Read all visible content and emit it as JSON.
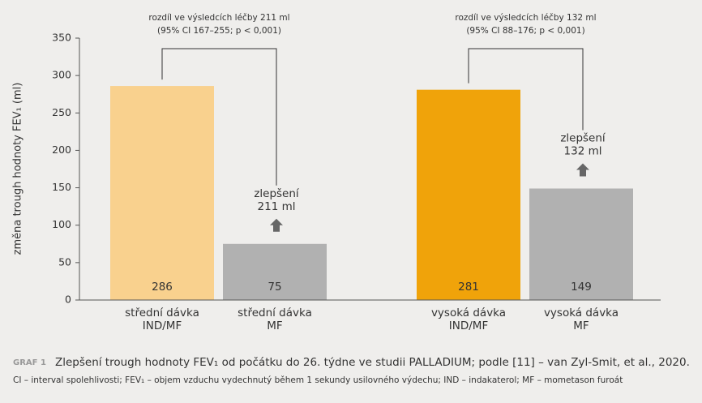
{
  "chart_data": {
    "type": "bar",
    "ylabel": "změna trough hodnoty FEV₁ (ml)",
    "categories": [
      [
        "střední dávka",
        "IND/MF"
      ],
      [
        "střední dávka",
        "MF"
      ],
      [
        "vysoká dávka",
        "IND/MF"
      ],
      [
        "vysoká dávka",
        "MF"
      ]
    ],
    "values": [
      286,
      75,
      281,
      149
    ],
    "colors": [
      "#f9d18e",
      "#b1b1b1",
      "#f0a30a",
      "#b1b1b1"
    ],
    "ylim": [
      0,
      350
    ],
    "yticks": [
      0,
      50,
      100,
      150,
      200,
      250,
      300,
      350
    ],
    "annotations": [
      {
        "lines": [
          "rozdíl ve výsledcích léčby 211 ml",
          "(95% CI 167–255; p < 0,001)"
        ],
        "improvement": [
          "zlepšení",
          "211 ml"
        ]
      },
      {
        "lines": [
          "rozdíl ve výsledcích léčby 132 ml",
          "(95% CI 88–176; p < 0,001)"
        ],
        "improvement": [
          "zlepšení",
          "132 ml"
        ]
      }
    ],
    "caption": {
      "label": "GRAF 1",
      "title": "Zlepšení trough hodnoty FEV₁ od počátku do 26. týdne ve studii PALLADIUM; podle [11] – van Zyl-Smit, et al., 2020.",
      "note": "CI – interval spolehlivosti; FEV₁ – objem vzduchu vydechnutý během 1 sekundy usilovného výdechu; IND – indakaterol; MF – mometason furoát"
    }
  }
}
